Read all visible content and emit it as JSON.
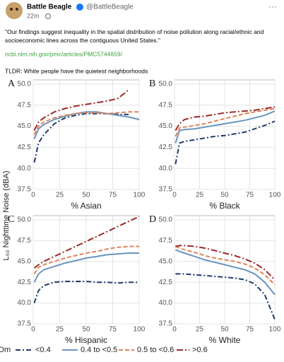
{
  "post": {
    "author": "Battle Beagle",
    "handle": "@BattleBeagle",
    "time": "22m",
    "text": "\"Our findings suggest inequality in the spatial distribution of noise pollution along racial/ethnic and socioeconomic lines across the contiguous United States.\"",
    "link": "ncbi.nlm.nih.gov/pmc/articles/PMC5744659/",
    "tldr": "TLDR: White people have the quietest neighborhoods"
  },
  "figure": {
    "y_label": "L₅₀ Nighttime Noise (dBA)",
    "legend_title": "Dm"
  },
  "chart_data": [
    {
      "type": "line",
      "title": "A",
      "x_label": "% Asian",
      "x": [
        1,
        5,
        10,
        20,
        30,
        40,
        50,
        60,
        70,
        80,
        90,
        100
      ],
      "xlim": [
        0,
        100
      ],
      "xticks": [
        0,
        25,
        50,
        75,
        100
      ],
      "ylim": [
        37.5,
        50.5
      ],
      "yticks": [
        37.5,
        {
          "value": 40,
          "label": "40.0"
        },
        42.5,
        {
          "value": 45,
          "label": "45.0"
        },
        47.5,
        {
          "value": 50,
          "label": "50.0"
        }
      ],
      "grid": true,
      "series": [
        {
          "name": "<0.4",
          "color": "#1f3a6b",
          "values": [
            40.7,
            43,
            44,
            45.3,
            46,
            46.3,
            46.5,
            46.5,
            46.5,
            46.4,
            46.4,
            null
          ]
        },
        {
          "name": "0.4 to <0.5",
          "color": "#6a95c0",
          "values": [
            43.5,
            44.7,
            45.2,
            45.8,
            46.2,
            46.5,
            46.7,
            46.7,
            46.5,
            46.3,
            46.1,
            45.8
          ]
        },
        {
          "name": "0.5 to <0.6",
          "color": "#e0835a",
          "values": [
            44,
            45,
            45.5,
            46,
            46.3,
            46.5,
            46.6,
            46.6,
            46.5,
            46.6,
            46.7,
            46.7
          ]
        },
        {
          "name": ">0.6",
          "color": "#9b2a2a",
          "values": [
            44.5,
            45.5,
            46,
            46.7,
            47.1,
            47.4,
            47.6,
            47.8,
            48,
            48.3,
            49.3,
            null
          ]
        }
      ]
    },
    {
      "type": "line",
      "title": "B",
      "x_label": "% Black",
      "x": [
        1,
        5,
        10,
        20,
        30,
        40,
        50,
        60,
        70,
        80,
        90,
        100
      ],
      "xlim": [
        0,
        100
      ],
      "xticks": [
        0,
        25,
        50,
        75,
        100
      ],
      "ylim": [
        37.5,
        50.5
      ],
      "yticks": [
        37.5,
        {
          "value": 40,
          "label": "40.0"
        },
        42.5,
        {
          "value": 45,
          "label": "45.0"
        },
        47.5,
        {
          "value": 50,
          "label": "50.0"
        }
      ],
      "grid": true,
      "series": [
        {
          "name": "<0.4",
          "color": "#1f3a6b",
          "values": [
            40.5,
            43,
            43.2,
            43.4,
            43.6,
            43.8,
            43.9,
            44.1,
            44.3,
            44.7,
            45.1,
            45.6
          ]
        },
        {
          "name": "0.4 to <0.5",
          "color": "#6a95c0",
          "values": [
            43,
            44.5,
            44.6,
            44.7,
            44.9,
            45.1,
            45.3,
            45.5,
            45.7,
            46,
            46.3,
            46.8
          ]
        },
        {
          "name": "0.5 to <0.6",
          "color": "#e0835a",
          "values": [
            43.8,
            44.8,
            44.9,
            45.1,
            45.3,
            45.6,
            45.9,
            46.2,
            46.5,
            46.7,
            46.9,
            47.1
          ]
        },
        {
          "name": ">0.6",
          "color": "#9b2a2a",
          "values": [
            44.5,
            45.3,
            45.8,
            46.1,
            46.2,
            46.4,
            46.6,
            46.7,
            46.8,
            46.9,
            47.1,
            47.3
          ]
        }
      ]
    },
    {
      "type": "line",
      "title": "C",
      "x_label": "% Hispanic",
      "x": [
        1,
        5,
        10,
        20,
        30,
        40,
        50,
        60,
        70,
        80,
        90,
        100
      ],
      "xlim": [
        0,
        100
      ],
      "xticks": [
        0,
        25,
        50,
        75,
        100
      ],
      "ylim": [
        37.5,
        50.5
      ],
      "yticks": [
        37.5,
        {
          "value": 40,
          "label": "40.0"
        },
        42.5,
        {
          "value": 45,
          "label": "45.0"
        },
        47.5,
        {
          "value": 50,
          "label": "50.0"
        }
      ],
      "grid": true,
      "series": [
        {
          "name": "<0.4",
          "color": "#1f3a6b",
          "values": [
            40,
            41.5,
            42.1,
            42.5,
            42.6,
            42.6,
            42.6,
            42.5,
            42.5,
            42.4,
            42.5,
            42.5
          ]
        },
        {
          "name": "0.4 to <0.5",
          "color": "#6a95c0",
          "values": [
            42.5,
            43.5,
            44,
            44.4,
            44.8,
            45.1,
            45.4,
            45.6,
            45.8,
            45.9,
            46,
            46
          ]
        },
        {
          "name": "0.5 to <0.6",
          "color": "#e0835a",
          "values": [
            43.5,
            44.3,
            44.6,
            45,
            45.4,
            45.7,
            46,
            46.2,
            46.5,
            46.7,
            46.8,
            46.8
          ]
        },
        {
          "name": ">0.6",
          "color": "#9b2a2a",
          "values": [
            44.2,
            44.6,
            45,
            45.6,
            46.2,
            46.8,
            47.4,
            48,
            48.6,
            49.2,
            49.8,
            50.4
          ]
        }
      ]
    },
    {
      "type": "line",
      "title": "D",
      "x_label": "% White",
      "x": [
        1,
        5,
        10,
        20,
        30,
        40,
        50,
        60,
        70,
        80,
        90,
        100
      ],
      "xlim": [
        0,
        100
      ],
      "xticks": [
        0,
        25,
        50,
        75,
        100
      ],
      "ylim": [
        37.5,
        50.5
      ],
      "yticks": [
        37.5,
        {
          "value": 40,
          "label": "40.0"
        },
        42.5,
        {
          "value": 45,
          "label": "45.0"
        },
        47.5,
        {
          "value": 50,
          "label": "50.0"
        }
      ],
      "grid": true,
      "series": [
        {
          "name": "<0.4",
          "color": "#1f3a6b",
          "values": [
            43.5,
            43.5,
            43.5,
            43.4,
            43.3,
            43.2,
            43.1,
            43,
            42.8,
            42.3,
            41,
            38
          ]
        },
        {
          "name": "0.4 to <0.5",
          "color": "#6a95c0",
          "values": [
            46.4,
            46.2,
            46,
            45.6,
            45.2,
            44.9,
            44.6,
            44.3,
            44,
            43.5,
            42.5,
            41
          ]
        },
        {
          "name": "0.5 to <0.6",
          "color": "#e0835a",
          "values": [
            46.8,
            46.6,
            46.4,
            46.1,
            45.7,
            45.4,
            45.2,
            45,
            44.7,
            44.2,
            43.4,
            42.2
          ]
        },
        {
          "name": ">0.6",
          "color": "#9b2a2a",
          "values": [
            46.8,
            46.9,
            46.9,
            46.8,
            46.6,
            46.3,
            46,
            45.7,
            45.3,
            44.8,
            44,
            42.8
          ]
        }
      ]
    }
  ]
}
